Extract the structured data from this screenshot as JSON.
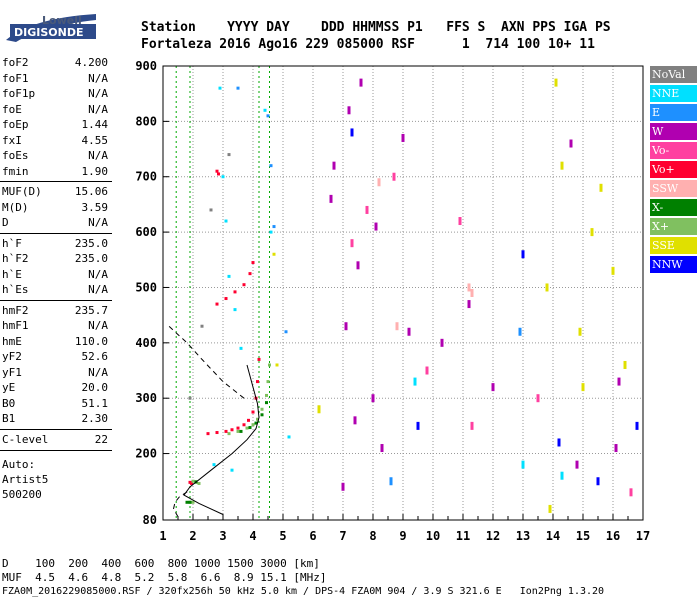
{
  "logo": {
    "top": "Lowell",
    "bottom": "DIGISONDE"
  },
  "header": {
    "labels": [
      "Station",
      "YYYY",
      "DAY",
      "DDD",
      "HHMMSS",
      "P1",
      "FFS",
      "S",
      "AXN",
      "PPS",
      "IGA",
      "PS"
    ],
    "values": [
      "Fortaleza",
      "2016",
      "Ago16",
      "229",
      "085000",
      "RSF",
      "",
      "1",
      "714",
      "100",
      "10+",
      "11"
    ],
    "line1": "Station    YYYY DAY    DDD HHMMSS P1   FFS S  AXN PPS IGA PS",
    "line2": "Fortaleza 2016 Ago16 229 085000 RSF      1  714 100 10+ 11"
  },
  "params": [
    {
      "k": "foF2",
      "v": "4.200"
    },
    {
      "k": "foF1",
      "v": "N/A"
    },
    {
      "k": "foF1p",
      "v": "N/A"
    },
    {
      "k": "foE",
      "v": "N/A"
    },
    {
      "k": "foEp",
      "v": "1.44"
    },
    {
      "k": "fxI",
      "v": "4.55"
    },
    {
      "k": "foEs",
      "v": "N/A"
    },
    {
      "k": "fmin",
      "v": "1.90"
    },
    {
      "k": "MUF(D)",
      "v": "15.06"
    },
    {
      "k": "M(D)",
      "v": "3.59"
    },
    {
      "k": "D",
      "v": "N/A"
    },
    {
      "k": "h`F",
      "v": "235.0"
    },
    {
      "k": "h`F2",
      "v": "235.0"
    },
    {
      "k": "h`E",
      "v": "N/A"
    },
    {
      "k": "h`Es",
      "v": "N/A"
    },
    {
      "k": "hmF2",
      "v": "235.7"
    },
    {
      "k": "hmF1",
      "v": "N/A"
    },
    {
      "k": "hmE",
      "v": "110.0"
    },
    {
      "k": "yF2",
      "v": "52.6"
    },
    {
      "k": "yF1",
      "v": "N/A"
    },
    {
      "k": "yE",
      "v": "20.0"
    },
    {
      "k": "B0",
      "v": "51.1"
    },
    {
      "k": "B1",
      "v": "2.30"
    },
    {
      "k": "C-level",
      "v": "22"
    }
  ],
  "auto": [
    "Auto:",
    "Artist5",
    "500200"
  ],
  "legend": [
    {
      "label": "NoVal",
      "color": "#808080"
    },
    {
      "label": "NNE",
      "color": "#00e0ff"
    },
    {
      "label": "E",
      "color": "#1e90ff"
    },
    {
      "label": "W",
      "color": "#b000b0"
    },
    {
      "label": "Vo-",
      "color": "#ff40a0"
    },
    {
      "label": "Vo+",
      "color": "#ff0030"
    },
    {
      "label": "SSW",
      "color": "#ffb0b0"
    },
    {
      "label": "X-",
      "color": "#008000"
    },
    {
      "label": "X+",
      "color": "#80c060"
    },
    {
      "label": "SSE",
      "color": "#e0e000"
    },
    {
      "label": "NNW",
      "color": "#0000ff"
    }
  ],
  "footer": {
    "d_line": "D    100  200  400  600  800 1000 1500 3000 [km]",
    "muf_line": "MUF  4.5  4.6  4.8  5.2  5.8  6.6  8.9 15.1 [MHz]",
    "file_line": "FZA0M_2016229085000.RSF / 320fx256h 50 kHz 5.0 km / DPS-4 FZA0M 904 / 3.9 S 321.6 E   Ion2Png 1.3.20"
  },
  "chart_data": {
    "type": "scatter",
    "title": "",
    "xlabel": "",
    "ylabel": "",
    "xlim": [
      1,
      17
    ],
    "ylim": [
      80,
      900
    ],
    "x_ticks": [
      1,
      2,
      3,
      4,
      5,
      6,
      7,
      8,
      9,
      10,
      11,
      12,
      13,
      14,
      15,
      16,
      17
    ],
    "y_ticks": [
      80,
      200,
      300,
      400,
      500,
      600,
      700,
      800,
      900
    ],
    "grid": true,
    "legend_position": "right",
    "markers": [
      {
        "name": "foF2",
        "x": 4.2
      },
      {
        "name": "fxI",
        "x": 4.55
      },
      {
        "name": "fmin",
        "x": 1.9
      },
      {
        "name": "foEp",
        "x": 1.44
      }
    ],
    "series": [
      {
        "legend": "Vo+",
        "points": [
          [
            2.5,
            236
          ],
          [
            2.8,
            238
          ],
          [
            3.1,
            240
          ],
          [
            3.3,
            243
          ],
          [
            3.5,
            246
          ],
          [
            3.7,
            252
          ],
          [
            3.85,
            260
          ],
          [
            4.0,
            275
          ],
          [
            4.1,
            300
          ],
          [
            4.15,
            330
          ],
          [
            4.2,
            370
          ],
          [
            2.8,
            470
          ],
          [
            3.1,
            480
          ],
          [
            3.4,
            492
          ],
          [
            3.7,
            505
          ],
          [
            3.9,
            525
          ],
          [
            4.0,
            545
          ],
          [
            1.9,
            148
          ],
          [
            1.95,
            146
          ],
          [
            2.8,
            710
          ],
          [
            2.85,
            705
          ]
        ]
      },
      {
        "legend": "X+",
        "points": [
          [
            3.2,
            236
          ],
          [
            3.5,
            240
          ],
          [
            3.8,
            246
          ],
          [
            4.0,
            252
          ],
          [
            4.15,
            262
          ],
          [
            4.3,
            280
          ],
          [
            4.45,
            305
          ],
          [
            4.5,
            330
          ],
          [
            4.55,
            360
          ],
          [
            2.0,
            150
          ],
          [
            2.1,
            148
          ],
          [
            2.2,
            146
          ],
          [
            1.9,
            112
          ],
          [
            2.0,
            112
          ]
        ]
      },
      {
        "legend": "X-",
        "points": [
          [
            3.6,
            240
          ],
          [
            3.9,
            247
          ],
          [
            4.1,
            255
          ],
          [
            4.3,
            270
          ],
          [
            4.45,
            292
          ],
          [
            1.8,
            112
          ],
          [
            1.9,
            112
          ],
          [
            2.1,
            149
          ]
        ]
      },
      {
        "legend": "W",
        "points": [
          [
            6.6,
            660
          ],
          [
            6.7,
            720
          ],
          [
            7.1,
            430
          ],
          [
            7.2,
            820
          ],
          [
            7.4,
            260
          ],
          [
            7.5,
            540
          ],
          [
            7.6,
            870
          ],
          [
            8.0,
            300
          ],
          [
            8.1,
            610
          ],
          [
            9.0,
            770
          ],
          [
            9.2,
            420
          ],
          [
            10.3,
            400
          ],
          [
            11.2,
            470
          ],
          [
            14.6,
            760
          ],
          [
            14.8,
            180
          ],
          [
            16.1,
            210
          ],
          [
            16.2,
            330
          ],
          [
            12.0,
            320
          ],
          [
            7.0,
            140
          ],
          [
            8.3,
            210
          ]
        ]
      },
      {
        "legend": "NNE",
        "points": [
          [
            2.9,
            860
          ],
          [
            3.0,
            700
          ],
          [
            3.1,
            620
          ],
          [
            3.2,
            520
          ],
          [
            3.4,
            460
          ],
          [
            3.6,
            390
          ],
          [
            2.7,
            180
          ],
          [
            3.3,
            170
          ],
          [
            4.4,
            820
          ],
          [
            4.6,
            600
          ],
          [
            5.2,
            230
          ],
          [
            9.4,
            330
          ],
          [
            14.3,
            160
          ],
          [
            13.0,
            180
          ]
        ]
      },
      {
        "legend": "E",
        "points": [
          [
            3.5,
            860
          ],
          [
            4.5,
            810
          ],
          [
            4.6,
            720
          ],
          [
            4.7,
            610
          ],
          [
            5.1,
            420
          ],
          [
            8.6,
            150
          ],
          [
            12.9,
            420
          ]
        ]
      },
      {
        "legend": "Vo-",
        "points": [
          [
            7.3,
            580
          ],
          [
            7.8,
            640
          ],
          [
            8.7,
            700
          ],
          [
            9.8,
            350
          ],
          [
            10.9,
            620
          ],
          [
            11.3,
            250
          ],
          [
            13.5,
            300
          ],
          [
            16.6,
            130
          ]
        ]
      },
      {
        "legend": "SSW",
        "points": [
          [
            8.2,
            690
          ],
          [
            8.8,
            430
          ],
          [
            11.2,
            500
          ],
          [
            11.3,
            490
          ]
        ]
      },
      {
        "legend": "SSE",
        "points": [
          [
            4.7,
            560
          ],
          [
            4.8,
            360
          ],
          [
            6.2,
            280
          ],
          [
            13.8,
            500
          ],
          [
            14.1,
            870
          ],
          [
            14.3,
            720
          ],
          [
            14.9,
            420
          ],
          [
            15.0,
            320
          ],
          [
            15.3,
            600
          ],
          [
            15.6,
            680
          ],
          [
            16.0,
            530
          ],
          [
            16.4,
            360
          ],
          [
            13.9,
            100
          ]
        ]
      },
      {
        "legend": "NNW",
        "points": [
          [
            7.3,
            780
          ],
          [
            9.5,
            250
          ],
          [
            13.0,
            560
          ],
          [
            14.2,
            220
          ],
          [
            15.5,
            150
          ],
          [
            16.8,
            250
          ]
        ]
      },
      {
        "legend": "NoVal",
        "points": [
          [
            1.9,
            300
          ],
          [
            2.3,
            430
          ],
          [
            2.6,
            640
          ],
          [
            3.2,
            740
          ]
        ]
      }
    ],
    "profile": {
      "note": "electron density profile curves",
      "solid": [
        [
          3.0,
          90
        ],
        [
          2.2,
          110
        ],
        [
          1.7,
          125
        ],
        [
          1.9,
          140
        ],
        [
          2.6,
          170
        ],
        [
          3.3,
          200
        ],
        [
          3.8,
          225
        ],
        [
          4.1,
          245
        ],
        [
          4.2,
          265
        ],
        [
          4.15,
          290
        ],
        [
          4.0,
          320
        ],
        [
          3.8,
          360
        ]
      ],
      "dashed_low": [
        [
          1.5,
          86
        ],
        [
          1.35,
          100
        ],
        [
          1.4,
          112
        ],
        [
          1.55,
          122
        ],
        [
          1.9,
          134
        ]
      ],
      "dashed_high": [
        [
          3.7,
          300
        ],
        [
          3.0,
          330
        ],
        [
          2.3,
          370
        ],
        [
          1.8,
          400
        ],
        [
          1.4,
          420
        ],
        [
          1.2,
          430
        ]
      ]
    }
  }
}
